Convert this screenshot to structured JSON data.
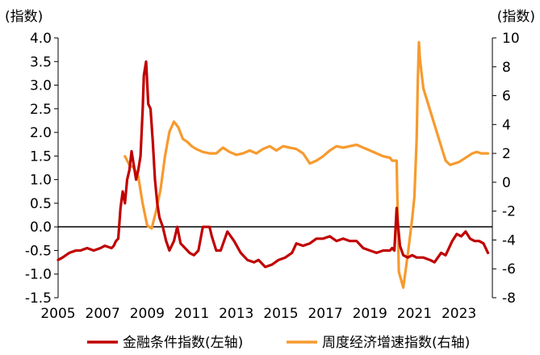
{
  "chart_data": {
    "type": "line",
    "left_axis_unit": "(指数)",
    "right_axis_unit": "(指数)",
    "x_ticks": [
      "2005",
      "2007",
      "2009",
      "2011",
      "2013",
      "2015",
      "2017",
      "2019",
      "2021",
      "2023"
    ],
    "xlim": [
      2005,
      2024.5
    ],
    "left_ylim": [
      -1.5,
      4.0
    ],
    "left_ticks": [
      "4.0",
      "3.5",
      "3.0",
      "2.5",
      "2.0",
      "1.5",
      "1.0",
      "0.5",
      "0.0",
      "-0.5",
      "-1.0",
      "-1.5"
    ],
    "right_ylim": [
      -8,
      10
    ],
    "right_ticks": [
      "10",
      "8",
      "6",
      "4",
      "2",
      "0",
      "-2",
      "-4",
      "-6",
      "-8"
    ],
    "grid": false,
    "legend_position": "bottom",
    "colors": {
      "financial": "#C00000",
      "weekly": "#F79A2E",
      "axis": "#000000"
    },
    "series": [
      {
        "name": "金融条件指数(左轴)",
        "axis": "left",
        "x": [
          2005.0,
          2005.2,
          2005.5,
          2005.8,
          2006.0,
          2006.3,
          2006.6,
          2006.9,
          2007.1,
          2007.4,
          2007.5,
          2007.6,
          2007.7,
          2007.8,
          2007.9,
          2008.0,
          2008.1,
          2008.2,
          2008.3,
          2008.4,
          2008.5,
          2008.6,
          2008.7,
          2008.8,
          2008.85,
          2008.95,
          2009.05,
          2009.15,
          2009.25,
          2009.35,
          2009.45,
          2009.55,
          2009.7,
          2009.85,
          2010.0,
          2010.2,
          2010.35,
          2010.5,
          2010.7,
          2010.9,
          2011.1,
          2011.3,
          2011.5,
          2011.6,
          2011.8,
          2011.9,
          2012.1,
          2012.3,
          2012.6,
          2012.9,
          2013.2,
          2013.5,
          2013.8,
          2014.0,
          2014.3,
          2014.6,
          2014.9,
          2015.2,
          2015.5,
          2015.7,
          2016.0,
          2016.3,
          2016.6,
          2016.9,
          2017.2,
          2017.5,
          2017.8,
          2018.1,
          2018.4,
          2018.7,
          2019.0,
          2019.3,
          2019.6,
          2019.9,
          2020.0,
          2020.1,
          2020.2,
          2020.25,
          2020.35,
          2020.5,
          2020.7,
          2020.9,
          2021.1,
          2021.4,
          2021.7,
          2021.9,
          2022.2,
          2022.4,
          2022.7,
          2022.9,
          2023.1,
          2023.3,
          2023.5,
          2023.7,
          2023.9,
          2024.1,
          2024.3
        ],
        "y": [
          -0.7,
          -0.65,
          -0.55,
          -0.5,
          -0.5,
          -0.45,
          -0.5,
          -0.45,
          -0.4,
          -0.45,
          -0.4,
          -0.3,
          -0.25,
          0.4,
          0.75,
          0.5,
          1.0,
          1.2,
          1.6,
          1.3,
          1.0,
          1.2,
          1.5,
          2.5,
          3.2,
          3.5,
          2.6,
          2.5,
          1.8,
          1.0,
          0.5,
          0.2,
          0.0,
          -0.3,
          -0.5,
          -0.3,
          0.0,
          -0.35,
          -0.45,
          -0.55,
          -0.6,
          -0.5,
          0.0,
          0.0,
          0.0,
          -0.2,
          -0.5,
          -0.5,
          -0.1,
          -0.3,
          -0.55,
          -0.7,
          -0.75,
          -0.7,
          -0.85,
          -0.8,
          -0.7,
          -0.65,
          -0.55,
          -0.35,
          -0.4,
          -0.35,
          -0.25,
          -0.25,
          -0.2,
          -0.3,
          -0.25,
          -0.3,
          -0.3,
          -0.45,
          -0.5,
          -0.55,
          -0.5,
          -0.5,
          -0.45,
          -0.5,
          0.4,
          0.1,
          -0.4,
          -0.6,
          -0.65,
          -0.6,
          -0.65,
          -0.65,
          -0.7,
          -0.75,
          -0.55,
          -0.6,
          -0.3,
          -0.15,
          -0.2,
          -0.1,
          -0.25,
          -0.3,
          -0.3,
          -0.35,
          -0.55
        ]
      },
      {
        "name": "周度经济增速指数(右轴)",
        "axis": "right",
        "x": [
          2008.0,
          2008.2,
          2008.4,
          2008.6,
          2008.8,
          2009.0,
          2009.2,
          2009.4,
          2009.6,
          2009.8,
          2010.0,
          2010.2,
          2010.4,
          2010.6,
          2010.8,
          2011.0,
          2011.2,
          2011.5,
          2011.8,
          2012.1,
          2012.4,
          2012.7,
          2013.0,
          2013.3,
          2013.6,
          2013.9,
          2014.2,
          2014.5,
          2014.8,
          2015.1,
          2015.4,
          2015.7,
          2016.0,
          2016.3,
          2016.6,
          2016.9,
          2017.2,
          2017.5,
          2017.8,
          2018.1,
          2018.4,
          2018.7,
          2019.0,
          2019.3,
          2019.6,
          2019.9,
          2020.0,
          2020.1,
          2020.2,
          2020.3,
          2020.5,
          2020.7,
          2020.9,
          2021.0,
          2021.1,
          2021.15,
          2021.2,
          2021.25,
          2021.4,
          2021.6,
          2021.8,
          2022.0,
          2022.2,
          2022.4,
          2022.6,
          2022.8,
          2023.0,
          2023.2,
          2023.4,
          2023.6,
          2023.8,
          2024.0,
          2024.3
        ],
        "y": [
          1.8,
          1.2,
          1.0,
          0.4,
          -1.5,
          -3.0,
          -3.2,
          -2.0,
          -0.5,
          1.8,
          3.5,
          4.2,
          3.8,
          3.0,
          2.8,
          2.5,
          2.3,
          2.1,
          2.0,
          2.0,
          2.4,
          2.1,
          1.9,
          2.0,
          2.2,
          2.0,
          2.3,
          2.5,
          2.2,
          2.5,
          2.4,
          2.3,
          2.0,
          1.3,
          1.5,
          1.8,
          2.2,
          2.5,
          2.4,
          2.5,
          2.6,
          2.4,
          2.2,
          2.0,
          1.8,
          1.7,
          1.5,
          1.5,
          1.5,
          -6.2,
          -7.3,
          -5.0,
          -2.5,
          -1.0,
          3.0,
          7.0,
          9.7,
          8.5,
          6.5,
          5.5,
          4.5,
          3.5,
          2.5,
          1.5,
          1.2,
          1.3,
          1.4,
          1.6,
          1.8,
          2.0,
          2.1,
          2.0,
          2.0
        ]
      }
    ]
  }
}
